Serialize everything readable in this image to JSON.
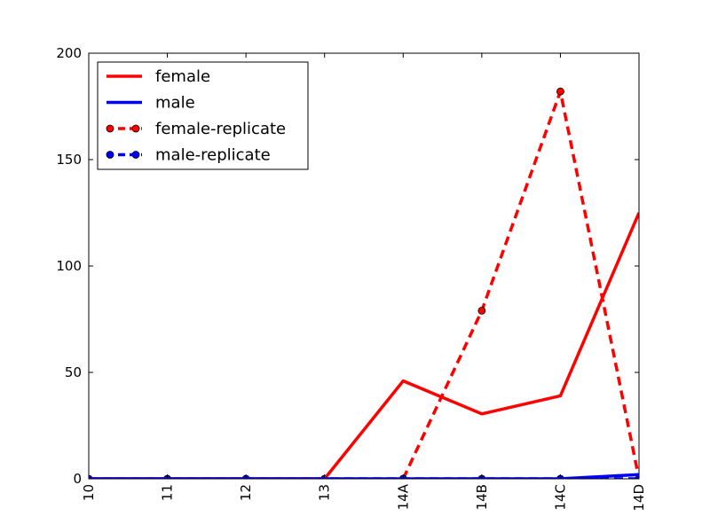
{
  "chart_data": {
    "type": "line",
    "categories": [
      "10",
      "11",
      "12",
      "13",
      "14A",
      "14B",
      "14C",
      "14D"
    ],
    "ylim": [
      0,
      200
    ],
    "yticks": [
      0,
      50,
      100,
      150,
      200
    ],
    "grid": false,
    "legend_position": "top-left",
    "series": [
      {
        "name": "female",
        "color": "#ff0000",
        "linestyle": "solid",
        "marker": "none",
        "values": [
          0,
          0,
          0,
          0,
          46,
          30.5,
          39,
          125
        ]
      },
      {
        "name": "male",
        "color": "#0000ff",
        "linestyle": "solid",
        "marker": "none",
        "values": [
          0,
          0,
          0,
          0,
          0,
          0,
          0,
          2
        ]
      },
      {
        "name": "female-replicate",
        "color": "#ff0000",
        "linestyle": "dashed",
        "marker": "circle",
        "values": [
          null,
          null,
          null,
          null,
          0,
          79,
          182,
          0
        ]
      },
      {
        "name": "male-replicate",
        "color": "#0000ff",
        "linestyle": "dashed",
        "marker": "circle",
        "values": [
          0,
          0,
          0,
          0,
          0,
          0,
          0,
          0
        ]
      }
    ]
  }
}
